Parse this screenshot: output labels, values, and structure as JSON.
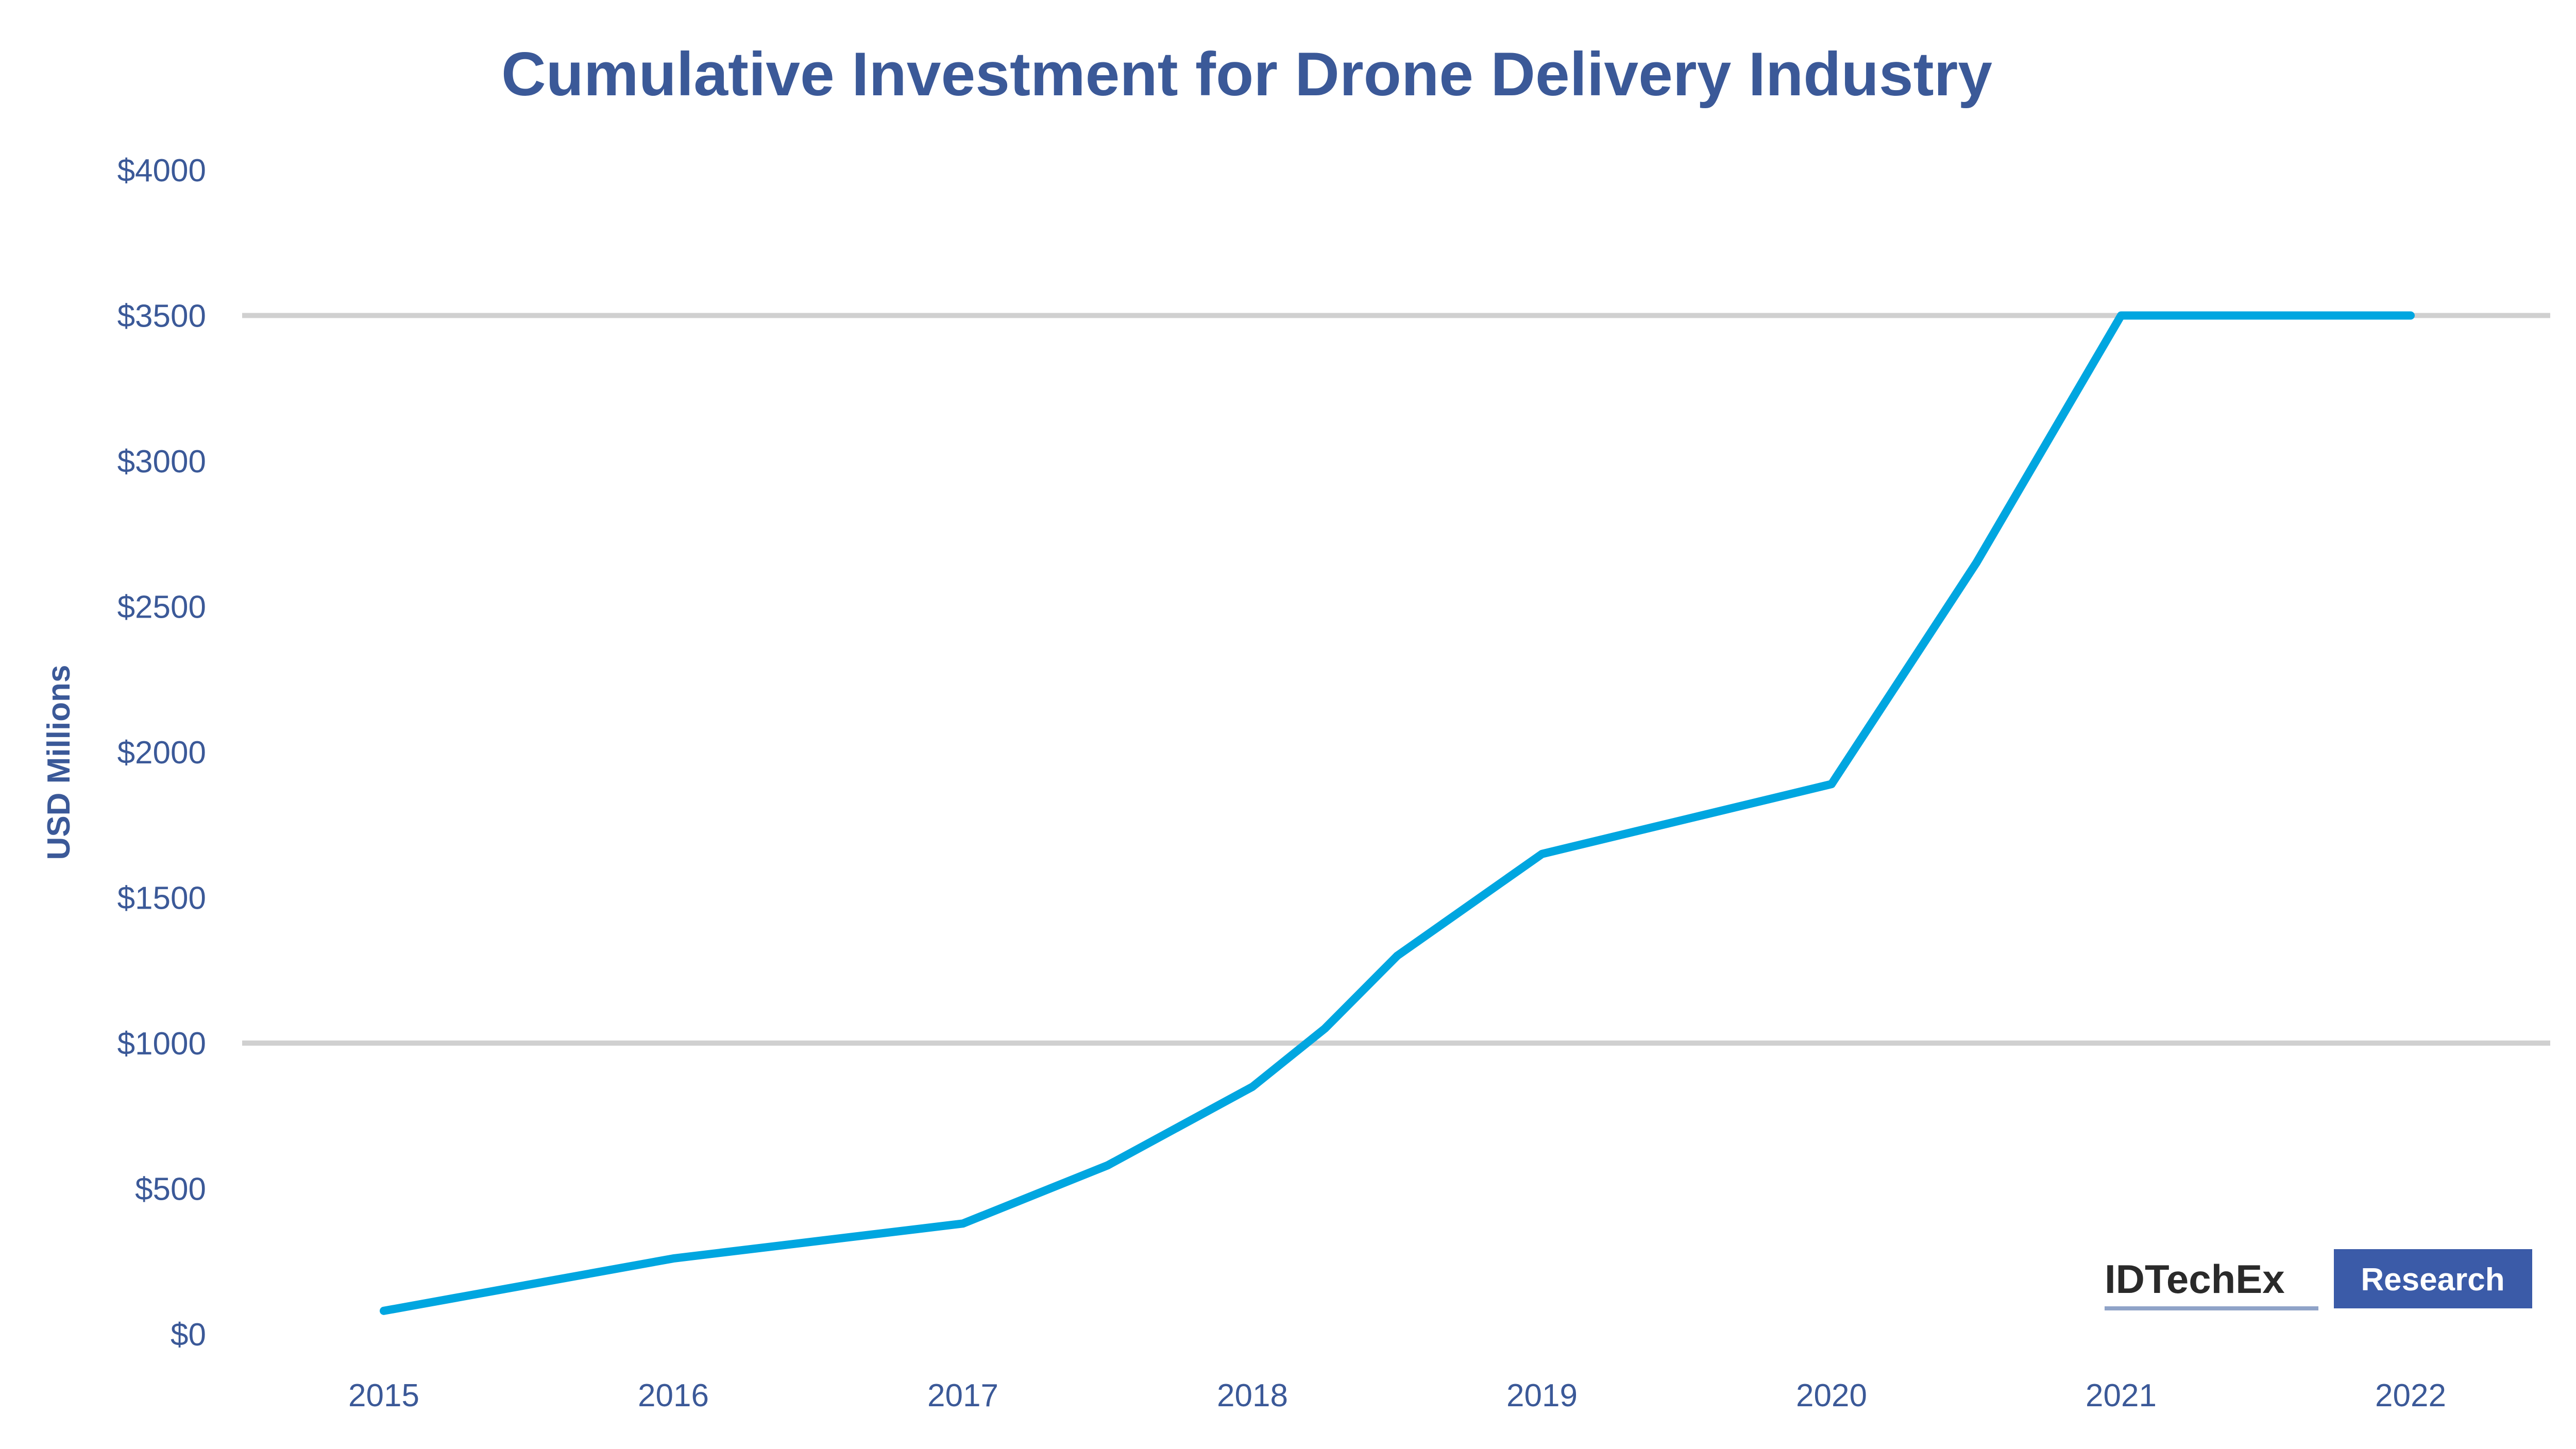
{
  "chart_data": {
    "type": "line",
    "title": "Cumulative Investment for Drone Delivery Industry",
    "xlabel": "",
    "ylabel": "USD Millions",
    "categories": [
      "2015",
      "2016",
      "2017",
      "2018",
      "2019",
      "2020",
      "2021",
      "2022"
    ],
    "y_ticks": [
      "$0",
      "$500",
      "$1000",
      "$1500",
      "$2000",
      "$2500",
      "$3000",
      "$3500",
      "$4000"
    ],
    "ylim": [
      0,
      4000
    ],
    "grid": "horizontal",
    "series": [
      {
        "name": "Cumulative Investment",
        "color": "#00a6e0",
        "points": [
          [
            0.0,
            80
          ],
          [
            1.0,
            260
          ],
          [
            2.0,
            380
          ],
          [
            2.5,
            580
          ],
          [
            3.0,
            850
          ],
          [
            3.25,
            1050
          ],
          [
            3.5,
            1300
          ],
          [
            4.0,
            1650
          ],
          [
            4.5,
            1770
          ],
          [
            5.0,
            1890
          ],
          [
            5.5,
            2650
          ],
          [
            6.0,
            3500
          ],
          [
            7.0,
            3500
          ]
        ]
      }
    ],
    "gridline_values": [
      1000,
      3500
    ]
  },
  "branding": {
    "logo_text": "IDTechEx",
    "badge_text": "Research"
  },
  "colors": {
    "title": "#3b5998",
    "line": "#00a6e0",
    "grid": "#d0d0d0",
    "badge": "#3b5ba8"
  }
}
